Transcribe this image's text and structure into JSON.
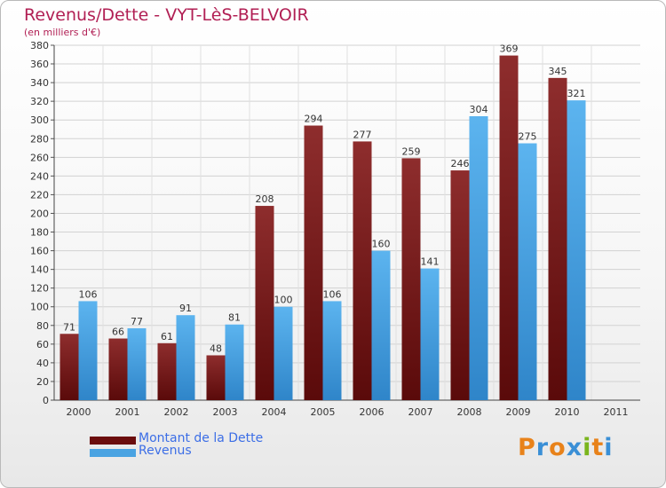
{
  "title": "Revenus/Dette - VYT-LèS-BELVOIR",
  "subtitle": "(en milliers d'€)",
  "chart_data": {
    "type": "bar",
    "title": "Revenus/Dette - VYT-LèS-BELVOIR",
    "ylabel": "(en milliers d'€)",
    "xlabel": "",
    "ylim": [
      0,
      380
    ],
    "ytick_step": 20,
    "grid": true,
    "categories": [
      "2000",
      "2001",
      "2002",
      "2003",
      "2004",
      "2005",
      "2006",
      "2007",
      "2008",
      "2009",
      "2010",
      "2011"
    ],
    "series": [
      {
        "name": "Montant de la Dette",
        "color": "#7a1515",
        "values": [
          71,
          66,
          61,
          48,
          208,
          294,
          277,
          259,
          246,
          369,
          345,
          null
        ]
      },
      {
        "name": "Revenus",
        "color": "#4aa3e2",
        "values": [
          106,
          77,
          91,
          81,
          100,
          106,
          160,
          141,
          304,
          275,
          321,
          null
        ]
      }
    ]
  },
  "legend": {
    "items": [
      {
        "label": "Montant de la Dette",
        "color": "#6b0d0d"
      },
      {
        "label": "Revenus",
        "color": "#4aa3e2"
      }
    ]
  },
  "logo": {
    "text": "Proxiti",
    "colors": [
      "#e8821a",
      "#3a8fd6",
      "#e8821a",
      "#3a8fd6",
      "#7ab51d",
      "#e8821a",
      "#3a8fd6"
    ]
  }
}
